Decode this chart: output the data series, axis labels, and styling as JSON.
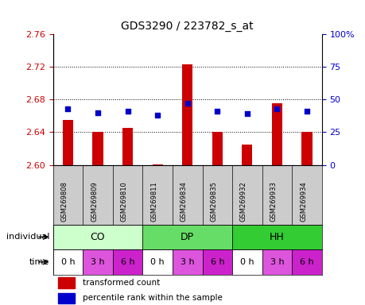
{
  "title": "GDS3290 / 223782_s_at",
  "samples": [
    "GSM269808",
    "GSM269809",
    "GSM269810",
    "GSM269811",
    "GSM269834",
    "GSM269835",
    "GSM269932",
    "GSM269933",
    "GSM269934"
  ],
  "bar_values": [
    2.655,
    2.64,
    2.645,
    2.601,
    2.723,
    2.64,
    2.625,
    2.675,
    2.64
  ],
  "percentile_values": [
    43,
    40,
    41,
    38,
    47,
    41,
    39,
    43,
    41
  ],
  "ymin": 2.6,
  "ymax": 2.76,
  "yticks": [
    2.6,
    2.64,
    2.68,
    2.72,
    2.76
  ],
  "y2min": 0,
  "y2max": 100,
  "y2ticks": [
    0,
    25,
    50,
    75,
    100
  ],
  "bar_color": "#cc0000",
  "dot_color": "#0000cc",
  "bar_bottom": 2.6,
  "groups": [
    {
      "label": "CO",
      "start": 0,
      "end": 3,
      "color": "#ccffcc"
    },
    {
      "label": "DP",
      "start": 3,
      "end": 6,
      "color": "#66dd66"
    },
    {
      "label": "HH",
      "start": 6,
      "end": 9,
      "color": "#33cc33"
    }
  ],
  "times": [
    "0 h",
    "3 h",
    "6 h",
    "0 h",
    "3 h",
    "6 h",
    "0 h",
    "3 h",
    "6 h"
  ],
  "time_colors": [
    "#ffffff",
    "#dd55dd",
    "#cc22cc",
    "#ffffff",
    "#dd55dd",
    "#cc22cc",
    "#ffffff",
    "#dd55dd",
    "#cc22cc"
  ],
  "individual_label": "individual",
  "time_label": "time",
  "legend_bar_label": "transformed count",
  "legend_dot_label": "percentile rank within the sample",
  "axis_label_color_left": "#cc0000",
  "axis_label_color_right": "#0000cc",
  "gsm_row_color": "#cccccc",
  "bg_color": "#ffffff"
}
